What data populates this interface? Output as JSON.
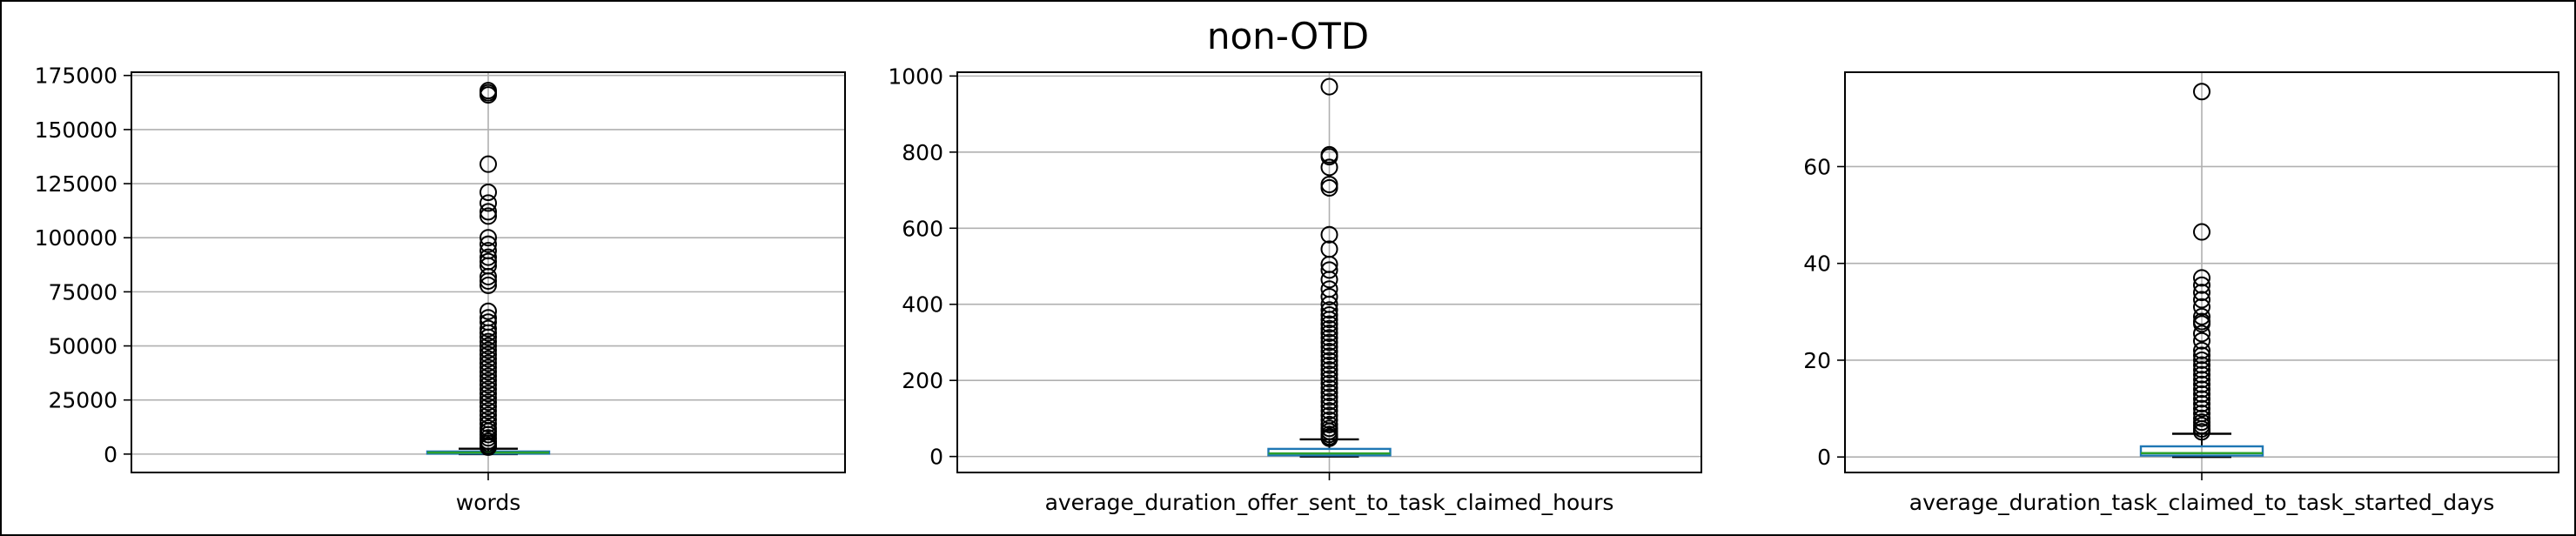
{
  "figure": {
    "title": "non-OTD"
  },
  "colors": {
    "box": "#1f77b4",
    "median": "#2ca02c",
    "grid": "#b0b0b0",
    "axes": "#000000"
  },
  "chart_data": [
    {
      "type": "box",
      "category": "words",
      "ylim": [
        -8500,
        176500
      ],
      "yticks": [
        {
          "value": 0,
          "label": "0"
        },
        {
          "value": 25000,
          "label": "25000"
        },
        {
          "value": 50000,
          "label": "50000"
        },
        {
          "value": 75000,
          "label": "75000"
        },
        {
          "value": 100000,
          "label": "100000"
        },
        {
          "value": 125000,
          "label": "125000"
        },
        {
          "value": 150000,
          "label": "150000"
        },
        {
          "value": 175000,
          "label": "175000"
        }
      ],
      "grid": true,
      "stats": {
        "whisker_low": 0,
        "q1": 200,
        "median": 700,
        "q3": 1200,
        "whisker_high": 2500
      },
      "outliers": [
        168000,
        167000,
        166000,
        134000,
        121000,
        116000,
        112000,
        110000,
        100000,
        97000,
        94000,
        91000,
        89000,
        87000,
        82000,
        80000,
        78000,
        66000,
        63000,
        61000,
        58000,
        56000,
        54000,
        52000,
        50000,
        48000,
        46000,
        44000,
        42000,
        40000,
        38000,
        36000,
        34000,
        32000,
        30000,
        28000,
        26000,
        24000,
        22000,
        20000,
        18000,
        16000,
        14000,
        12000,
        10500,
        9000,
        7500,
        6000,
        5000,
        4000,
        3200
      ]
    },
    {
      "type": "box",
      "category": "average_duration_offer_sent_to_task_claimed_hours",
      "ylim": [
        -42,
        1010
      ],
      "yticks": [
        {
          "value": 0,
          "label": "0"
        },
        {
          "value": 200,
          "label": "200"
        },
        {
          "value": 400,
          "label": "400"
        },
        {
          "value": 600,
          "label": "600"
        },
        {
          "value": 800,
          "label": "800"
        },
        {
          "value": 1000,
          "label": "1000"
        }
      ],
      "grid": true,
      "stats": {
        "whisker_low": 0,
        "q1": 3,
        "median": 8,
        "q3": 20,
        "whisker_high": 45
      },
      "outliers": [
        972,
        793,
        788,
        760,
        715,
        706,
        583,
        545,
        505,
        490,
        465,
        440,
        420,
        400,
        385,
        372,
        360,
        348,
        336,
        324,
        312,
        300,
        288,
        276,
        264,
        252,
        240,
        228,
        216,
        204,
        192,
        180,
        168,
        156,
        144,
        132,
        120,
        108,
        96,
        84,
        74,
        66,
        58,
        52,
        48
      ]
    },
    {
      "type": "box",
      "category": "average_duration_task_claimed_to_task_started_days",
      "ylim": [
        -3.2,
        79.5
      ],
      "yticks": [
        {
          "value": 0,
          "label": "0"
        },
        {
          "value": 20,
          "label": "20"
        },
        {
          "value": 40,
          "label": "40"
        },
        {
          "value": 60,
          "label": "60"
        }
      ],
      "grid": true,
      "stats": {
        "whisker_low": 0,
        "q1": 0.3,
        "median": 0.8,
        "q3": 2.2,
        "whisker_high": 4.8
      },
      "outliers": [
        75.5,
        46.5,
        37,
        35.5,
        34,
        32.5,
        31,
        29,
        28,
        27.5,
        25.5,
        24,
        22,
        21,
        20,
        19,
        18,
        17,
        16,
        15,
        14,
        13,
        12,
        11,
        10,
        9,
        8,
        7.2,
        6.5,
        5.8,
        5.2
      ]
    }
  ]
}
